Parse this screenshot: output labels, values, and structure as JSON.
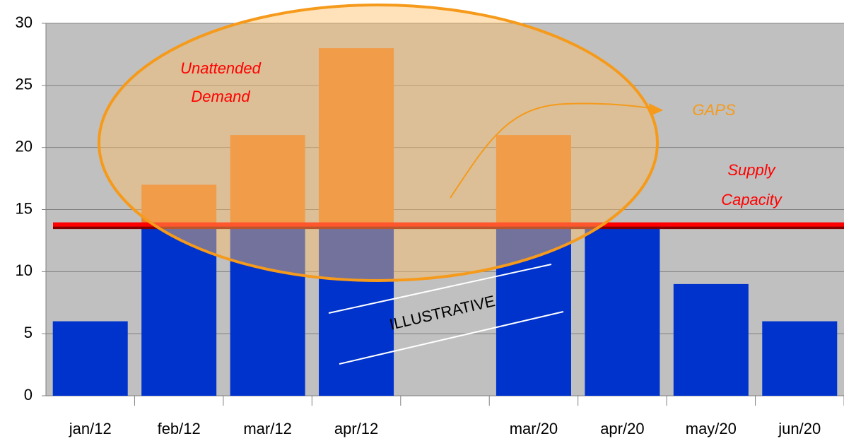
{
  "chart_data": {
    "type": "bar",
    "stacked": true,
    "categories": [
      "jan/12",
      "feb/12",
      "mar/12",
      "apr/12",
      null,
      "mar/20",
      "apr/20",
      "may/20",
      "jun/20"
    ],
    "series": [
      {
        "color": "#0033cc",
        "values": [
          6,
          13.8,
          13.8,
          13.8,
          null,
          13.8,
          13.8,
          9,
          6
        ]
      },
      {
        "color": "#e68033",
        "values": [
          null,
          3.2,
          7.2,
          14.2,
          null,
          7.2,
          null,
          null,
          null
        ]
      }
    ],
    "capacity_line": 13.8,
    "capacity_color": "#ff0000",
    "ylim": [
      0,
      30
    ],
    "yticks": [
      0,
      5,
      10,
      15,
      20,
      25,
      30
    ],
    "grid": true,
    "annotations": {
      "demand": "Unattended Demand",
      "gaps": "GAPS",
      "supply": "Supply Capacity",
      "illustrative": "ILLUSTRATIVE"
    }
  }
}
